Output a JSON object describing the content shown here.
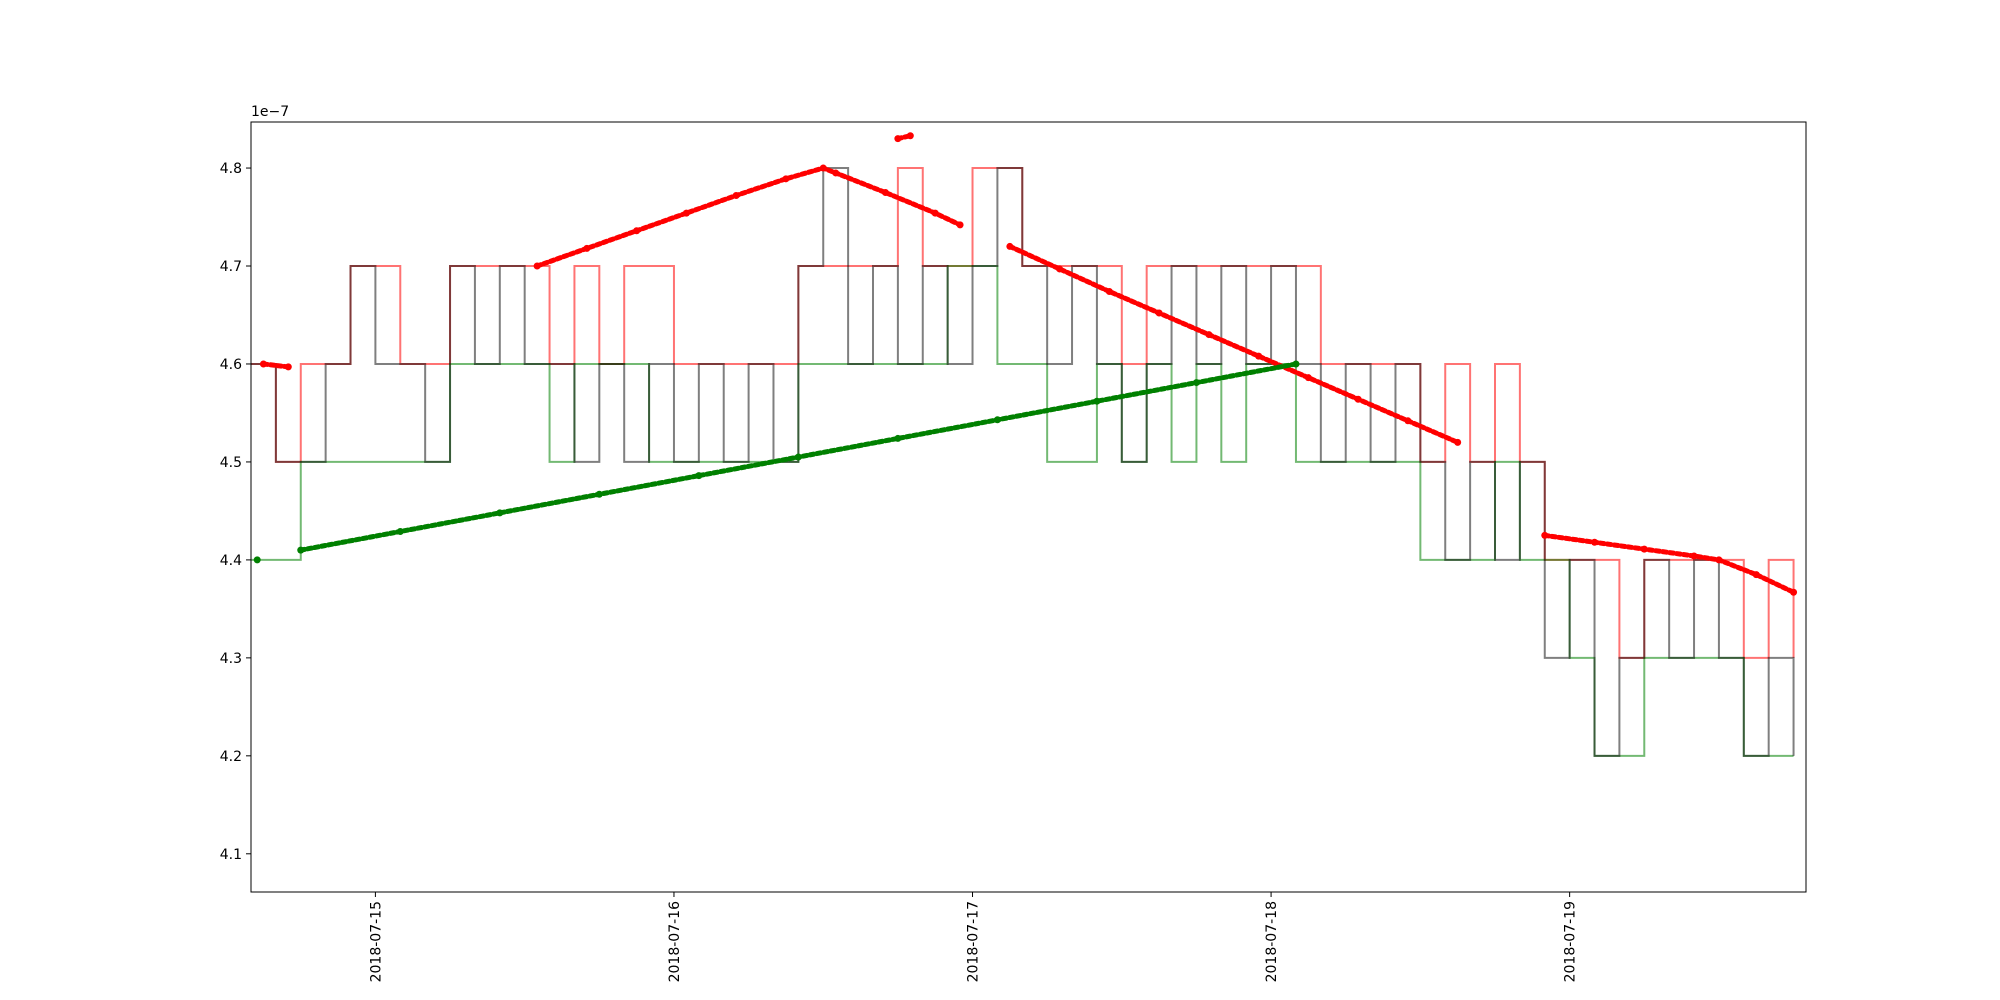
{
  "chart_data": {
    "type": "line",
    "y_offset_text": "1e−7",
    "xlim": [
      "2018-07-14T14:00",
      "2018-07-19T19:00"
    ],
    "xticks": [
      {
        "value": "2018-07-15T00:00",
        "label": "2018-07-15"
      },
      {
        "value": "2018-07-16T00:00",
        "label": "2018-07-16"
      },
      {
        "value": "2018-07-17T00:00",
        "label": "2018-07-17"
      },
      {
        "value": "2018-07-18T00:00",
        "label": "2018-07-18"
      },
      {
        "value": "2018-07-19T00:00",
        "label": "2018-07-19"
      }
    ],
    "ylim": [
      4.061,
      4.847
    ],
    "yticks": [
      4.1,
      4.2,
      4.3,
      4.4,
      4.5,
      4.6,
      4.7,
      4.8
    ],
    "step_x": [
      "2018-07-14T14:00",
      "2018-07-14T16:00",
      "2018-07-14T18:00",
      "2018-07-14T20:00",
      "2018-07-14T22:00",
      "2018-07-15T00:00",
      "2018-07-15T02:00",
      "2018-07-15T04:00",
      "2018-07-15T06:00",
      "2018-07-15T08:00",
      "2018-07-15T10:00",
      "2018-07-15T12:00",
      "2018-07-15T14:00",
      "2018-07-15T16:00",
      "2018-07-15T18:00",
      "2018-07-15T20:00",
      "2018-07-15T22:00",
      "2018-07-16T00:00",
      "2018-07-16T02:00",
      "2018-07-16T04:00",
      "2018-07-16T06:00",
      "2018-07-16T08:00",
      "2018-07-16T10:00",
      "2018-07-16T12:00",
      "2018-07-16T14:00",
      "2018-07-16T16:00",
      "2018-07-16T18:00",
      "2018-07-16T20:00",
      "2018-07-16T22:00",
      "2018-07-17T00:00",
      "2018-07-17T02:00",
      "2018-07-17T04:00",
      "2018-07-17T06:00",
      "2018-07-17T08:00",
      "2018-07-17T10:00",
      "2018-07-17T12:00",
      "2018-07-17T14:00",
      "2018-07-17T16:00",
      "2018-07-17T18:00",
      "2018-07-17T20:00",
      "2018-07-17T22:00",
      "2018-07-18T00:00",
      "2018-07-18T02:00",
      "2018-07-18T04:00",
      "2018-07-18T06:00",
      "2018-07-18T08:00",
      "2018-07-18T10:00",
      "2018-07-18T12:00",
      "2018-07-18T14:00",
      "2018-07-18T16:00",
      "2018-07-18T18:00",
      "2018-07-18T20:00",
      "2018-07-18T22:00",
      "2018-07-19T00:00",
      "2018-07-19T02:00",
      "2018-07-19T04:00",
      "2018-07-19T06:00",
      "2018-07-19T08:00",
      "2018-07-19T10:00",
      "2018-07-19T12:00",
      "2018-07-19T14:00",
      "2018-07-19T16:00",
      "2018-07-19T18:00"
    ],
    "series": [
      {
        "style": "step",
        "color": "#ff0000",
        "opacity": 0.55,
        "values": [
          4.6,
          4.5,
          4.6,
          4.6,
          4.7,
          4.7,
          4.6,
          4.6,
          4.7,
          4.7,
          4.7,
          4.7,
          4.6,
          4.7,
          4.6,
          4.7,
          4.7,
          4.6,
          4.6,
          4.6,
          4.6,
          4.6,
          4.7,
          4.7,
          4.7,
          4.7,
          4.8,
          4.7,
          4.7,
          4.8,
          4.8,
          4.7,
          4.7,
          4.7,
          4.7,
          4.6,
          4.7,
          4.7,
          4.7,
          4.7,
          4.7,
          4.7,
          4.7,
          4.6,
          4.6,
          4.6,
          4.6,
          4.5,
          4.6,
          4.5,
          4.6,
          4.5,
          4.4,
          4.4,
          4.4,
          4.3,
          4.4,
          4.4,
          4.4,
          4.4,
          4.3,
          4.4,
          4.3
        ]
      },
      {
        "style": "step",
        "color": "#008000",
        "opacity": 0.55,
        "values": [
          4.4,
          4.4,
          4.5,
          4.5,
          4.5,
          4.5,
          4.5,
          4.5,
          4.6,
          4.6,
          4.6,
          4.6,
          4.5,
          4.6,
          4.6,
          4.6,
          4.5,
          4.5,
          4.5,
          4.5,
          4.5,
          4.5,
          4.6,
          4.6,
          4.6,
          4.6,
          4.6,
          4.6,
          4.7,
          4.7,
          4.6,
          4.6,
          4.5,
          4.5,
          4.6,
          4.5,
          4.6,
          4.5,
          4.6,
          4.5,
          4.6,
          4.6,
          4.5,
          4.5,
          4.5,
          4.5,
          4.5,
          4.4,
          4.4,
          4.4,
          4.5,
          4.4,
          4.4,
          4.3,
          4.2,
          4.2,
          4.3,
          4.3,
          4.3,
          4.3,
          4.2,
          4.2,
          4.2
        ]
      },
      {
        "style": "step",
        "color": "#000000",
        "opacity": 0.5,
        "values": [
          4.6,
          4.5,
          4.5,
          4.6,
          4.7,
          4.6,
          4.6,
          4.5,
          4.7,
          4.6,
          4.7,
          4.6,
          4.6,
          4.5,
          4.6,
          4.5,
          4.6,
          4.5,
          4.6,
          4.5,
          4.6,
          4.5,
          4.7,
          4.8,
          4.6,
          4.7,
          4.6,
          4.7,
          4.6,
          4.7,
          4.8,
          4.7,
          4.6,
          4.7,
          4.6,
          4.5,
          4.6,
          4.7,
          4.6,
          4.7,
          4.6,
          4.7,
          4.6,
          4.5,
          4.6,
          4.5,
          4.6,
          4.5,
          4.4,
          4.5,
          4.4,
          4.5,
          4.3,
          4.4,
          4.2,
          4.3,
          4.4,
          4.3,
          4.4,
          4.3,
          4.2,
          4.3,
          4.2
        ]
      },
      {
        "style": "dots",
        "color": "#ff0000",
        "x": [
          "2018-07-14T15:00",
          "2018-07-14T17:00",
          "2018-07-15T12:00",
          "2018-07-15T13:00",
          "2018-07-15T17:00",
          "2018-07-15T21:00",
          "2018-07-16T01:00",
          "2018-07-16T05:00",
          "2018-07-16T09:00",
          "2018-07-16T12:00",
          "2018-07-16T13:00",
          "2018-07-16T17:00",
          "2018-07-16T21:00",
          "2018-07-16T23:00",
          "2018-07-17T02:00",
          "2018-07-17T03:00",
          "2018-07-17T07:00",
          "2018-07-17T11:00",
          "2018-07-17T15:00",
          "2018-07-17T19:00",
          "2018-07-17T23:00",
          "2018-07-18T03:00",
          "2018-07-18T07:00",
          "2018-07-18T11:00",
          "2018-07-18T15:00",
          "2018-07-18T20:00",
          "2018-07-18T22:00",
          "2018-07-19T02:00",
          "2018-07-19T06:00",
          "2018-07-19T10:00",
          "2018-07-19T12:00",
          "2018-07-19T15:00",
          "2018-07-19T18:00"
        ],
        "values": [
          4.6,
          4.597,
          null,
          4.7,
          4.718,
          4.736,
          4.754,
          4.772,
          4.789,
          4.8,
          4.795,
          4.775,
          4.754,
          4.742,
          null,
          4.72,
          4.697,
          4.674,
          4.652,
          4.63,
          4.608,
          4.586,
          4.564,
          4.542,
          4.52,
          null,
          4.425,
          4.418,
          4.411,
          4.404,
          4.4,
          4.385,
          4.367
        ]
      },
      {
        "style": "dots",
        "color": "#ff0000",
        "x": [
          "2018-07-16T18:00",
          "2018-07-16T19:00"
        ],
        "values": [
          4.83,
          4.833
        ]
      },
      {
        "style": "dots",
        "color": "#008000",
        "x": [
          "2018-07-14T14:30",
          "2018-07-14T16:00",
          "2018-07-14T18:00",
          "2018-07-15T02:00",
          "2018-07-15T10:00",
          "2018-07-15T18:00",
          "2018-07-16T02:00",
          "2018-07-16T10:00",
          "2018-07-16T18:00",
          "2018-07-17T02:00",
          "2018-07-17T10:00",
          "2018-07-17T18:00",
          "2018-07-18T02:00"
        ],
        "values": [
          4.4,
          null,
          4.41,
          4.429,
          4.448,
          4.467,
          4.486,
          4.505,
          4.524,
          4.543,
          4.562,
          4.581,
          4.6
        ]
      }
    ]
  }
}
